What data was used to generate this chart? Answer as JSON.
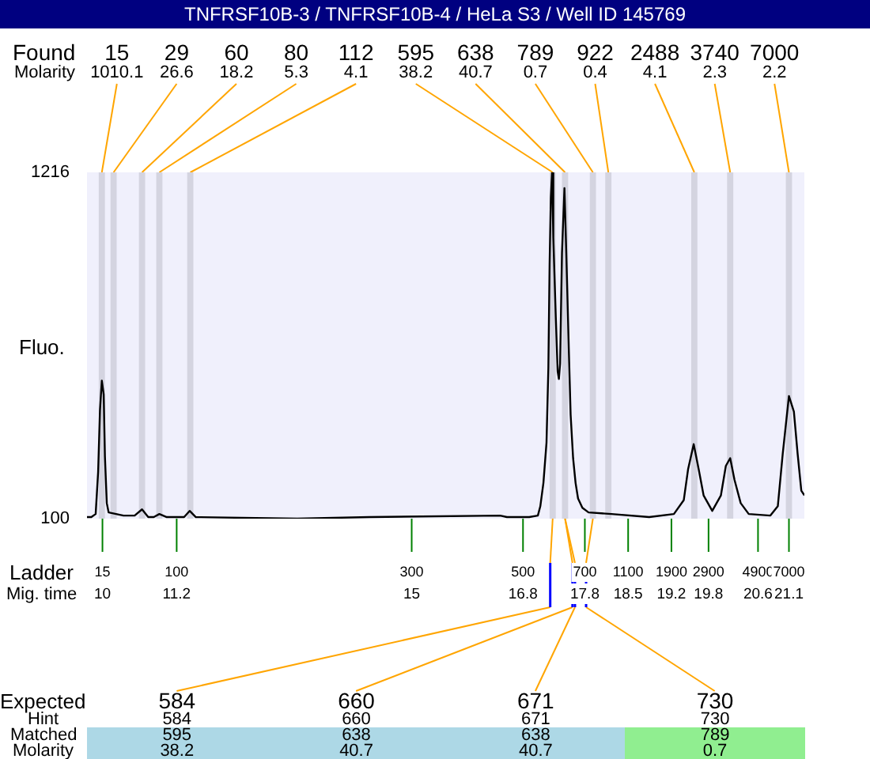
{
  "chart_data": {
    "type": "line",
    "title": "TNFRSF10B-3 / TNFRSF10B-4 / HeLa S3 / Well ID 145769",
    "ylabel": "Fluo.",
    "xlabel": "Mig. time",
    "x": [
      9.75,
      9.82,
      9.89,
      9.93,
      9.96,
      9.99,
      10.02,
      10.04,
      10.07,
      10.1,
      10.22,
      10.34,
      10.52,
      10.64,
      10.74,
      10.83,
      10.92,
      11.04,
      11.32,
      11.41,
      11.51,
      13.15,
      14.32,
      16.43,
      16.54,
      16.73,
      16.9,
      17.04,
      17.08,
      17.13,
      17.18,
      17.21,
      17.23,
      17.25,
      17.27,
      17.29,
      17.33,
      17.36,
      17.38,
      17.4,
      17.43,
      17.47,
      17.5,
      17.54,
      17.57,
      17.61,
      17.65,
      17.69,
      17.76,
      17.86,
      18.23,
      18.84,
      19.24,
      19.4,
      19.47,
      19.56,
      19.64,
      19.72,
      19.86,
      20.0,
      20.08,
      20.15,
      20.22,
      20.32,
      20.45,
      20.8,
      20.92,
      21.0,
      21.1,
      21.18,
      21.24,
      21.3,
      21.35
    ],
    "series": [
      {
        "color": "#000000",
        "values": [
          105,
          105,
          115,
          250,
          450,
          545,
          500,
          300,
          150,
          120,
          115,
          110,
          110,
          130,
          105,
          105,
          115,
          105,
          105,
          125,
          105,
          100,
          105,
          110,
          105,
          105,
          105,
          110,
          140,
          215,
          345,
          585,
          920,
          1135,
          1216,
          1005,
          750,
          575,
          550,
          600,
          955,
          1165,
          955,
          650,
          435,
          295,
          215,
          165,
          135,
          120,
          115,
          105,
          115,
          160,
          260,
          340,
          260,
          175,
          125,
          175,
          270,
          295,
          225,
          150,
          115,
          110,
          140,
          310,
          495,
          445,
          310,
          190,
          175
        ]
      }
    ],
    "xlim": [
      9.75,
      21.35
    ],
    "xticks": [
      10,
      11.2,
      15,
      16.8,
      17.8,
      18.5,
      19.2,
      19.8,
      20.6,
      21.1
    ],
    "ylim": [
      100,
      1216
    ],
    "yticks": [
      100,
      1216
    ],
    "bands": [
      {
        "axis": "x",
        "from": 9.94,
        "to": 10.04,
        "label": "15",
        "color": "#d4d4e0"
      },
      {
        "axis": "x",
        "from": 10.13,
        "to": 10.23,
        "label": "29",
        "color": "#d4d4e0"
      },
      {
        "axis": "x",
        "from": 10.59,
        "to": 10.69,
        "label": "60",
        "color": "#d4d4e0"
      },
      {
        "axis": "x",
        "from": 10.87,
        "to": 10.97,
        "label": "80",
        "color": "#d4d4e0"
      },
      {
        "axis": "x",
        "from": 11.37,
        "to": 11.47,
        "label": "112",
        "color": "#d4d4e0"
      },
      {
        "axis": "x",
        "from": 17.23,
        "to": 17.33,
        "label": "595",
        "color": "#d4d4e0"
      },
      {
        "axis": "x",
        "from": 17.43,
        "to": 17.53,
        "label": "638",
        "color": "#d4d4e0"
      },
      {
        "axis": "x",
        "from": 17.88,
        "to": 17.98,
        "label": "789",
        "color": "#d4d4e0"
      },
      {
        "axis": "x",
        "from": 18.13,
        "to": 18.23,
        "label": "922",
        "color": "#d4d4e0"
      },
      {
        "axis": "x",
        "from": 19.52,
        "to": 19.62,
        "label": "2488",
        "color": "#d4d4e0"
      },
      {
        "axis": "x",
        "from": 20.1,
        "to": 20.2,
        "label": "3740",
        "color": "#d4d4e0"
      },
      {
        "axis": "x",
        "from": 21.05,
        "to": 21.15,
        "label": "7000",
        "color": "#d4d4e0"
      }
    ],
    "annotations": [
      "Found",
      "Molarity",
      {
        "text": "1010.1",
        "x": 9.99,
        "y": 1216
      },
      {
        "text": "26.6",
        "x": 10.18,
        "y": 1216
      },
      {
        "text": "18.2",
        "x": 10.64,
        "y": 1216
      },
      {
        "text": "5.3",
        "x": 10.92,
        "y": 1216
      },
      {
        "text": "4.1",
        "x": 11.42,
        "y": 1216
      },
      {
        "text": "38.2",
        "x": 17.28,
        "y": 1216
      },
      {
        "text": "40.7",
        "x": 17.48,
        "y": 1216
      },
      {
        "text": "0.7",
        "x": 17.93,
        "y": 1216
      },
      {
        "text": "0.4",
        "x": 18.18,
        "y": 1216
      },
      {
        "text": "4.1",
        "x": 19.57,
        "y": 1216
      },
      {
        "text": "2.3",
        "x": 20.15,
        "y": 1216
      },
      {
        "text": "2.2",
        "x": 21.1,
        "y": 1216
      },
      "Ladder",
      {
        "text": "15",
        "x": 10,
        "y": 100
      },
      {
        "text": "100",
        "x": 11.2,
        "y": 100
      },
      {
        "text": "300",
        "x": 15,
        "y": 100
      },
      {
        "text": "500",
        "x": 16.8,
        "y": 100
      },
      {
        "text": "700",
        "x": 17.8,
        "y": 100
      },
      {
        "text": "1100",
        "x": 18.5,
        "y": 100
      },
      {
        "text": "1900",
        "x": 19.2,
        "y": 100
      },
      {
        "text": "2900",
        "x": 19.8,
        "y": 100
      },
      {
        "text": "4900",
        "x": 20.6,
        "y": 100
      },
      {
        "text": "7000",
        "x": 21.1,
        "y": 100
      },
      "Expected",
      "Hint",
      "Matched",
      "Molarity",
      {
        "text": "584",
        "x": 17.24
      },
      {
        "text": "660",
        "x": 17.6
      },
      {
        "text": "671",
        "x": 17.64
      },
      {
        "text": "730",
        "x": 17.82
      },
      "584",
      "660",
      "671",
      "730",
      "595",
      "638",
      "638",
      "789",
      "38.2",
      "40.7",
      "40.7",
      "0.7"
    ]
  }
}
